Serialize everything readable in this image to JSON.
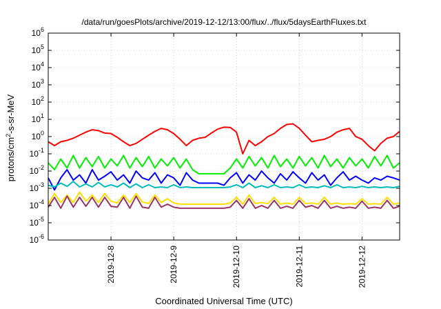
{
  "chart_data": {
    "type": "line",
    "title": "/data/run/goesPlots/archive/2019-12-12/13:00/flux/../flux/5daysEarthFluxes.txt",
    "xlabel": "Coordinated Universal Time (UTC)",
    "ylabel": {
      "base": "protons/cm",
      "sup": "2",
      "rest": "-s-sr-MeV"
    },
    "yscale": "log",
    "ylim": [
      1e-06,
      1000000.0
    ],
    "y_ticks": [
      {
        "base": "10",
        "exp": "-6",
        "value": 1e-06
      },
      {
        "base": "10",
        "exp": "-5",
        "value": 1e-05
      },
      {
        "base": "10",
        "exp": "-4",
        "value": 0.0001
      },
      {
        "base": "10",
        "exp": "-3",
        "value": 0.001
      },
      {
        "base": "10",
        "exp": "-2",
        "value": 0.01
      },
      {
        "base": "10",
        "exp": "-1",
        "value": 0.1
      },
      {
        "base": "10",
        "exp": "0",
        "value": 1
      },
      {
        "base": "10",
        "exp": "1",
        "value": 10
      },
      {
        "base": "10",
        "exp": "2",
        "value": 100
      },
      {
        "base": "10",
        "exp": "3",
        "value": 1000
      },
      {
        "base": "10",
        "exp": "4",
        "value": 10000
      },
      {
        "base": "10",
        "exp": "5",
        "value": 100000
      },
      {
        "base": "10",
        "exp": "6",
        "value": 1000000
      }
    ],
    "xlim": [
      0,
      5.6
    ],
    "x_ticks": [
      {
        "label": "2019-12-8",
        "value": 1.0
      },
      {
        "label": "2019-12-9",
        "value": 2.0
      },
      {
        "label": "2019-12-10",
        "value": 3.0
      },
      {
        "label": "2019-12-11",
        "value": 4.0
      },
      {
        "label": "2019-12-12",
        "value": 5.0
      }
    ],
    "grid": true,
    "series": [
      {
        "color": "#ff0000",
        "x": [
          0.0,
          0.1,
          0.2,
          0.3,
          0.4,
          0.5,
          0.6,
          0.7,
          0.8,
          0.9,
          1.0,
          1.1,
          1.2,
          1.3,
          1.4,
          1.5,
          1.6,
          1.7,
          1.8,
          1.9,
          2.0,
          2.1,
          2.2,
          2.3,
          2.4,
          2.5,
          2.6,
          2.7,
          2.8,
          2.9,
          3.0,
          3.1,
          3.2,
          3.3,
          3.4,
          3.5,
          3.6,
          3.7,
          3.8,
          3.9,
          4.0,
          4.1,
          4.2,
          4.3,
          4.4,
          4.5,
          4.6,
          4.7,
          4.8,
          4.9,
          5.0,
          5.1,
          5.2,
          5.3,
          5.4,
          5.5,
          5.6
        ],
        "y": [
          0.5,
          0.3,
          0.5,
          0.6,
          0.8,
          1.2,
          1.8,
          2.5,
          2.2,
          1.6,
          1.5,
          0.9,
          0.5,
          0.3,
          0.4,
          0.7,
          1.2,
          2.0,
          3.0,
          2.5,
          1.5,
          0.7,
          0.3,
          0.6,
          0.8,
          0.9,
          1.6,
          2.7,
          3.5,
          3.4,
          1.8,
          0.1,
          0.6,
          0.3,
          0.5,
          1.0,
          1.5,
          3.0,
          5.0,
          5.5,
          3.0,
          1.2,
          0.5,
          0.6,
          0.7,
          1.0,
          1.8,
          2.5,
          3.0,
          1.0,
          0.7,
          0.3,
          0.15,
          0.4,
          0.8,
          1.0,
          2.0
        ]
      },
      {
        "color": "#00ee00",
        "x": [
          0.0,
          0.1,
          0.2,
          0.3,
          0.4,
          0.5,
          0.6,
          0.7,
          0.8,
          0.9,
          1.0,
          1.1,
          1.2,
          1.3,
          1.4,
          1.5,
          1.6,
          1.7,
          1.8,
          1.9,
          2.0,
          2.1,
          2.2,
          2.3,
          2.4,
          2.5,
          2.6,
          2.7,
          2.8,
          2.9,
          3.0,
          3.1,
          3.2,
          3.3,
          3.4,
          3.5,
          3.6,
          3.7,
          3.8,
          3.9,
          4.0,
          4.1,
          4.2,
          4.3,
          4.4,
          4.5,
          4.6,
          4.7,
          4.8,
          4.9,
          5.0,
          5.1,
          5.2,
          5.3,
          5.4,
          5.5,
          5.6
        ],
        "y": [
          0.03,
          0.012,
          0.05,
          0.015,
          0.08,
          0.015,
          0.06,
          0.018,
          0.07,
          0.015,
          0.05,
          0.02,
          0.08,
          0.015,
          0.06,
          0.018,
          0.07,
          0.015,
          0.05,
          0.02,
          0.06,
          0.015,
          0.05,
          0.012,
          0.007,
          0.007,
          0.007,
          0.007,
          0.007,
          0.015,
          0.05,
          0.015,
          0.07,
          0.02,
          0.06,
          0.015,
          0.08,
          0.018,
          0.05,
          0.015,
          0.07,
          0.02,
          0.06,
          0.015,
          0.08,
          0.018,
          0.05,
          0.015,
          0.06,
          0.02,
          0.05,
          0.015,
          0.07,
          0.02,
          0.08,
          0.015,
          0.03
        ]
      },
      {
        "color": "#0000ff",
        "x": [
          0.0,
          0.1,
          0.2,
          0.3,
          0.4,
          0.5,
          0.6,
          0.7,
          0.8,
          0.9,
          1.0,
          1.1,
          1.2,
          1.3,
          1.4,
          1.5,
          1.6,
          1.7,
          1.8,
          1.9,
          2.0,
          2.1,
          2.2,
          2.3,
          2.4,
          2.5,
          2.6,
          2.7,
          2.8,
          2.9,
          3.0,
          3.1,
          3.2,
          3.3,
          3.4,
          3.5,
          3.6,
          3.7,
          3.8,
          3.9,
          4.0,
          4.1,
          4.2,
          4.3,
          4.4,
          4.5,
          4.6,
          4.7,
          4.8,
          4.9,
          5.0,
          5.1,
          5.2,
          5.3,
          5.4,
          5.5,
          5.6
        ],
        "y": [
          0.004,
          0.0008,
          0.004,
          0.012,
          0.003,
          0.006,
          0.002,
          0.012,
          0.003,
          0.005,
          0.009,
          0.003,
          0.006,
          0.002,
          0.01,
          0.004,
          0.003,
          0.008,
          0.002,
          0.006,
          0.004,
          0.0015,
          0.008,
          0.003,
          0.002,
          0.002,
          0.002,
          0.002,
          0.0015,
          0.004,
          0.008,
          0.002,
          0.006,
          0.003,
          0.01,
          0.004,
          0.002,
          0.007,
          0.003,
          0.009,
          0.004,
          0.002,
          0.008,
          0.003,
          0.006,
          0.0015,
          0.004,
          0.009,
          0.003,
          0.005,
          0.003,
          0.002,
          0.004,
          0.003,
          0.005,
          0.004,
          0.003
        ]
      },
      {
        "color": "#00bbbb",
        "x": [
          0.0,
          0.1,
          0.2,
          0.3,
          0.4,
          0.5,
          0.6,
          0.7,
          0.8,
          0.9,
          1.0,
          1.1,
          1.2,
          1.3,
          1.4,
          1.5,
          1.6,
          1.7,
          1.8,
          1.9,
          2.0,
          2.1,
          2.2,
          2.3,
          2.4,
          2.5,
          2.6,
          2.7,
          2.8,
          2.9,
          3.0,
          3.1,
          3.2,
          3.3,
          3.4,
          3.5,
          3.6,
          3.7,
          3.8,
          3.9,
          4.0,
          4.1,
          4.2,
          4.3,
          4.4,
          4.5,
          4.6,
          4.7,
          4.8,
          4.9,
          5.0,
          5.1,
          5.2,
          5.3,
          5.4,
          5.5,
          5.6
        ],
        "y": [
          0.0015,
          0.0012,
          0.002,
          0.0013,
          0.0025,
          0.0012,
          0.0018,
          0.0012,
          0.0022,
          0.0012,
          0.0016,
          0.0012,
          0.002,
          0.0011,
          0.0018,
          0.0011,
          0.0016,
          0.0011,
          0.0012,
          0.0011,
          0.0016,
          0.0011,
          0.0012,
          0.0011,
          0.0011,
          0.0011,
          0.0011,
          0.0011,
          0.0011,
          0.0012,
          0.0016,
          0.0011,
          0.002,
          0.0011,
          0.0014,
          0.0011,
          0.0016,
          0.0011,
          0.0012,
          0.0011,
          0.0016,
          0.0011,
          0.0012,
          0.0011,
          0.0014,
          0.0011,
          0.0016,
          0.0011,
          0.0012,
          0.0011,
          0.0013,
          0.0011,
          0.0012,
          0.0011,
          0.0012,
          0.0011,
          0.0013
        ]
      },
      {
        "color": "#ffdd00",
        "x": [
          0.0,
          0.1,
          0.2,
          0.3,
          0.4,
          0.5,
          0.6,
          0.7,
          0.8,
          0.9,
          1.0,
          1.1,
          1.2,
          1.3,
          1.4,
          1.5,
          1.6,
          1.7,
          1.8,
          1.9,
          2.0,
          2.1,
          2.2,
          2.3,
          2.4,
          2.5,
          2.6,
          2.7,
          2.8,
          2.9,
          3.0,
          3.1,
          3.2,
          3.3,
          3.4,
          3.5,
          3.6,
          3.7,
          3.8,
          3.9,
          4.0,
          4.1,
          4.2,
          4.3,
          4.4,
          4.5,
          4.6,
          4.7,
          4.8,
          4.9,
          5.0,
          5.1,
          5.2,
          5.3,
          5.4,
          5.5,
          5.6
        ],
        "y": [
          0.00012,
          0.0005,
          0.00015,
          0.0004,
          0.00015,
          0.0006,
          0.00018,
          0.0004,
          0.00015,
          0.0005,
          0.00018,
          0.00014,
          0.0004,
          0.00015,
          0.0005,
          0.00016,
          0.00013,
          0.0004,
          0.00015,
          0.00025,
          0.00014,
          0.00012,
          0.00012,
          0.00012,
          0.00012,
          0.00012,
          0.00012,
          0.00012,
          0.00012,
          0.00014,
          0.0003,
          0.00012,
          0.0004,
          0.00013,
          0.00015,
          0.00013,
          0.0003,
          0.00012,
          0.00014,
          0.00012,
          0.0003,
          0.00013,
          0.00014,
          0.00012,
          0.0003,
          0.00012,
          0.00014,
          0.00012,
          0.00013,
          0.00012,
          0.00025,
          0.00012,
          0.00013,
          0.00012,
          0.0003,
          0.00012,
          0.00014
        ]
      },
      {
        "color": "#993366",
        "x": [
          0.0,
          0.1,
          0.2,
          0.3,
          0.4,
          0.5,
          0.6,
          0.7,
          0.8,
          0.9,
          1.0,
          1.1,
          1.2,
          1.3,
          1.4,
          1.5,
          1.6,
          1.7,
          1.8,
          1.9,
          2.0,
          2.1,
          2.2,
          2.3,
          2.4,
          2.5,
          2.6,
          2.7,
          2.8,
          2.9,
          3.0,
          3.1,
          3.2,
          3.3,
          3.4,
          3.5,
          3.6,
          3.7,
          3.8,
          3.9,
          4.0,
          4.1,
          4.2,
          4.3,
          4.4,
          4.5,
          4.6,
          4.7,
          4.8,
          4.9,
          5.0,
          5.1,
          5.2,
          5.3,
          5.4,
          5.5,
          5.6
        ],
        "y": [
          8e-05,
          0.0003,
          7e-05,
          0.00035,
          8e-05,
          0.0003,
          9e-05,
          0.0003,
          8e-05,
          0.0003,
          9e-05,
          8e-05,
          0.0003,
          7e-05,
          0.00035,
          8e-05,
          7e-05,
          0.0003,
          8e-05,
          0.00012,
          8e-05,
          7e-05,
          7e-05,
          7e-05,
          7e-05,
          7e-05,
          7e-05,
          7e-05,
          7e-05,
          8e-05,
          0.0002,
          7e-05,
          0.00025,
          7e-05,
          0.0001,
          7e-05,
          0.0002,
          7e-05,
          9e-05,
          7e-05,
          0.0002,
          8e-05,
          0.0001,
          7e-05,
          0.0002,
          7e-05,
          9e-05,
          7e-05,
          8e-05,
          7e-05,
          0.00018,
          7e-05,
          8e-05,
          7e-05,
          0.0002,
          7e-05,
          9e-05
        ]
      }
    ]
  }
}
